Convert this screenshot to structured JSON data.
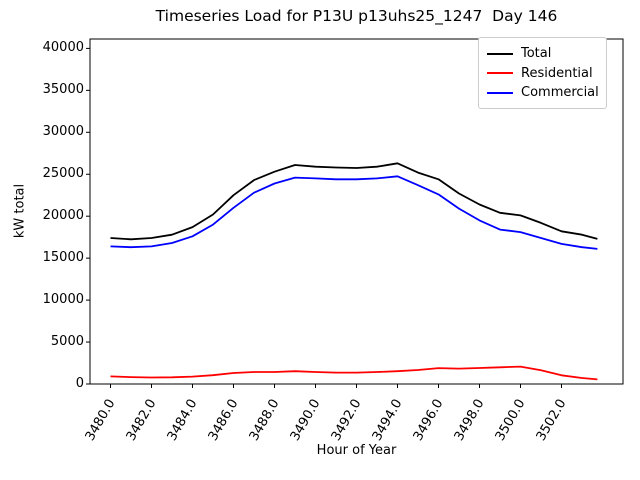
{
  "title": "Timeseries Load for P13U p13uhs25_1247  Day 146",
  "xlabel": "Hour of Year",
  "ylabel": "kW total",
  "legend": {
    "position": "upper right",
    "entries": [
      {
        "label": "Total",
        "color": "#000000"
      },
      {
        "label": "Residential",
        "color": "#ff0000"
      },
      {
        "label": "Commercial",
        "color": "#0000ff"
      }
    ]
  },
  "axes": {
    "x_tick_labels": [
      "3480.0",
      "3482.0",
      "3484.0",
      "3486.0",
      "3488.0",
      "3490.0",
      "3492.0",
      "3494.0",
      "3496.0",
      "3498.0",
      "3500.0",
      "3502.0"
    ],
    "x_tick_values": [
      3480,
      3482,
      3484,
      3486,
      3488,
      3490,
      3492,
      3494,
      3496,
      3498,
      3500,
      3502
    ],
    "y_tick_labels": [
      "0",
      "5000",
      "10000",
      "15000",
      "20000",
      "25000",
      "30000",
      "35000",
      "40000"
    ],
    "y_tick_values": [
      0,
      5000,
      10000,
      15000,
      20000,
      25000,
      30000,
      35000,
      40000
    ],
    "xlim": [
      3479.0,
      3505.0
    ],
    "ylim": [
      0,
      41120
    ]
  },
  "chart_data": {
    "type": "line",
    "title": "Timeseries Load for P13U p13uhs25_1247  Day 146",
    "xlabel": "Hour of Year",
    "ylabel": "kW total",
    "xlim": [
      3479.0,
      3505.0
    ],
    "ylim": [
      0,
      41120
    ],
    "grid": false,
    "legend_position": "upper right",
    "x": [
      3480,
      3481,
      3482,
      3483,
      3484,
      3485,
      3486,
      3487,
      3488,
      3489,
      3490,
      3491,
      3492,
      3493,
      3494,
      3495,
      3496,
      3497,
      3498,
      3499,
      3500,
      3501,
      3502,
      3503,
      3503.75
    ],
    "series": [
      {
        "name": "Total",
        "color": "#000000",
        "values": [
          17400,
          17250,
          17400,
          17800,
          18700,
          20200,
          22500,
          24300,
          25300,
          26100,
          25900,
          25800,
          25750,
          25900,
          26300,
          25200,
          24400,
          22700,
          21400,
          20400,
          20100,
          19200,
          18200,
          17800,
          17300
        ]
      },
      {
        "name": "Residential",
        "color": "#ff0000",
        "values": [
          900,
          820,
          780,
          800,
          880,
          1050,
          1310,
          1430,
          1430,
          1520,
          1430,
          1360,
          1360,
          1430,
          1520,
          1670,
          1900,
          1840,
          1910,
          1990,
          2070,
          1640,
          1040,
          720,
          550
        ]
      },
      {
        "name": "Commercial",
        "color": "#0000ff",
        "values": [
          16400,
          16300,
          16400,
          16800,
          17600,
          19000,
          21000,
          22800,
          23900,
          24600,
          24500,
          24400,
          24400,
          24500,
          24750,
          23700,
          22600,
          20900,
          19500,
          18400,
          18100,
          17400,
          16700,
          16300,
          16100
        ]
      }
    ]
  }
}
